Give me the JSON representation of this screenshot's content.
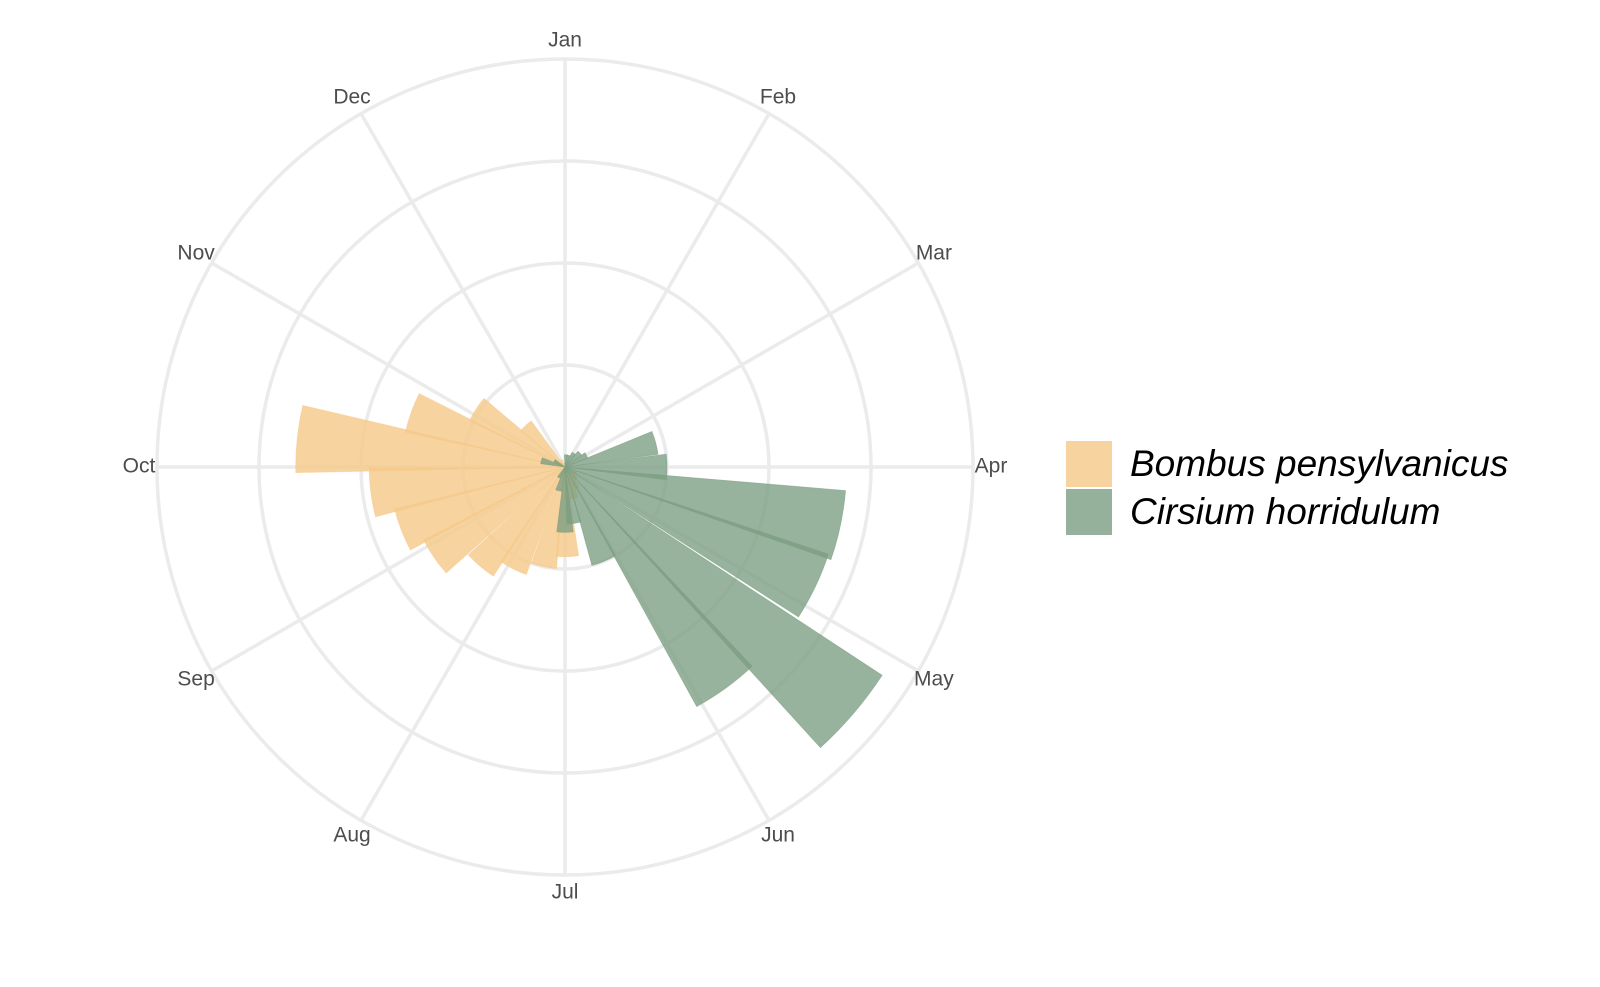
{
  "chart_data": {
    "type": "polar-bar",
    "title": "",
    "angular_axis": {
      "labels": [
        "Jan",
        "Feb",
        "Mar",
        "Apr",
        "May",
        "Jun",
        "Jul",
        "Aug",
        "Sep",
        "Oct",
        "Nov",
        "Dec"
      ],
      "start": "top",
      "direction": "clockwise"
    },
    "radial_gridlines": [
      0.25,
      0.5,
      0.75,
      1.0
    ],
    "grid": true,
    "legend_position": "right",
    "series": [
      {
        "name": "Bombus pensylvanicus",
        "color": "#f5c98a",
        "bars": [
          {
            "month": 4.05,
            "value": 0.03
          },
          {
            "month": 4.55,
            "value": 0.04
          },
          {
            "month": 5.0,
            "value": 0.06
          },
          {
            "month": 5.45,
            "value": 0.08
          },
          {
            "month": 5.95,
            "value": 0.22
          },
          {
            "month": 6.4,
            "value": 0.25
          },
          {
            "month": 6.9,
            "value": 0.28
          },
          {
            "month": 7.35,
            "value": 0.32
          },
          {
            "month": 7.85,
            "value": 0.39
          },
          {
            "month": 8.3,
            "value": 0.43
          },
          {
            "month": 8.75,
            "value": 0.48
          },
          {
            "month": 9.2,
            "value": 0.66
          },
          {
            "month": 9.65,
            "value": 0.4
          },
          {
            "month": 10.1,
            "value": 0.26
          },
          {
            "month": 10.55,
            "value": 0.14
          },
          {
            "month": 11.0,
            "value": 0.02
          },
          {
            "month": 11.45,
            "value": 0.01
          }
        ]
      },
      {
        "name": "Cirsium horridulum",
        "color": "#7b9e82",
        "bars": [
          {
            "month": 0.15,
            "value": 0.03
          },
          {
            "month": 0.6,
            "value": 0.03
          },
          {
            "month": 1.1,
            "value": 0.04
          },
          {
            "month": 1.55,
            "value": 0.05
          },
          {
            "month": 2.05,
            "value": 0.06
          },
          {
            "month": 2.5,
            "value": 0.23
          },
          {
            "month": 3.0,
            "value": 0.25
          },
          {
            "month": 3.4,
            "value": 0.69
          },
          {
            "month": 3.85,
            "value": 0.68
          },
          {
            "month": 4.35,
            "value": 0.93
          },
          {
            "month": 4.8,
            "value": 0.67
          },
          {
            "month": 5.25,
            "value": 0.25
          },
          {
            "month": 5.7,
            "value": 0.14
          },
          {
            "month": 6.0,
            "value": 0.16
          },
          {
            "month": 6.5,
            "value": 0.06
          },
          {
            "month": 7.0,
            "value": 0.03
          },
          {
            "month": 9.5,
            "value": 0.06
          },
          {
            "month": 10.0,
            "value": 0.03
          }
        ]
      }
    ]
  }
}
